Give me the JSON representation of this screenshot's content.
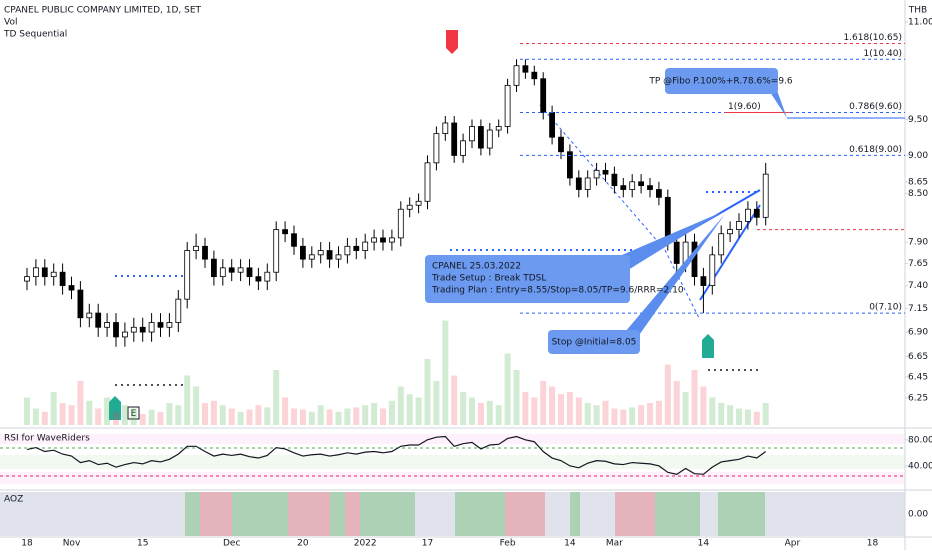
{
  "chart_data": [
    {
      "type": "candlestick",
      "title": "CPANEL PUBLIC COMPANY LIMITED, 1D, SET",
      "indicator": "TD Sequential",
      "currency": "THB",
      "log_scale": true,
      "up_color": "#ffffff",
      "down_color": "#000000",
      "categories": [
        "18",
        null,
        null,
        null,
        null,
        "Nov",
        null,
        null,
        null,
        null,
        null,
        null,
        null,
        "15",
        null,
        null,
        null,
        null,
        null,
        null,
        null,
        null,
        null,
        "Dec",
        null,
        null,
        null,
        null,
        null,
        null,
        null,
        "20",
        null,
        null,
        null,
        null,
        null,
        null,
        "2022",
        null,
        null,
        null,
        null,
        null,
        null,
        "17",
        null,
        null,
        null,
        null,
        null,
        null,
        null,
        null,
        "Feb",
        null,
        null,
        null,
        null,
        null,
        null,
        "14",
        null,
        null,
        null,
        null,
        "Mar",
        null,
        null,
        null,
        null,
        null,
        null,
        null,
        null,
        null,
        "14",
        null,
        null,
        null,
        null,
        null,
        null,
        null,
        null,
        null,
        "Apr",
        null,
        null,
        null,
        null,
        null,
        null,
        null,
        null,
        "18"
      ],
      "open": [
        7.45,
        7.5,
        7.6,
        7.5,
        7.55,
        7.4,
        7.35,
        7.05,
        7.1,
        6.95,
        7.0,
        6.85,
        6.9,
        6.95,
        6.9,
        7.0,
        6.95,
        7.0,
        7.25,
        7.8,
        7.85,
        7.7,
        7.5,
        7.6,
        7.55,
        7.6,
        7.5,
        7.45,
        7.55,
        8.05,
        8.0,
        7.85,
        7.7,
        7.75,
        7.8,
        7.7,
        7.75,
        7.85,
        7.8,
        7.9,
        7.95,
        7.9,
        7.95,
        8.3,
        8.35,
        8.4,
        8.9,
        9.3,
        9.45,
        9.0,
        9.2,
        9.4,
        9.1,
        9.35,
        9.4,
        10.0,
        10.3,
        10.2,
        10.1,
        9.6,
        9.25,
        9.05,
        8.7,
        8.55,
        8.7,
        8.8,
        8.75,
        8.6,
        8.55,
        8.65,
        8.6,
        8.55,
        8.45,
        7.9,
        7.65,
        7.9,
        7.5,
        7.4,
        7.75,
        8.0,
        8.05,
        8.15,
        8.3,
        8.2,
        null,
        null,
        null,
        null,
        null,
        null,
        null,
        null,
        null,
        null,
        null,
        null
      ],
      "high": [
        7.6,
        7.7,
        7.7,
        7.65,
        7.65,
        7.5,
        7.45,
        7.2,
        7.2,
        7.1,
        7.1,
        7.0,
        7.05,
        7.05,
        7.1,
        7.1,
        7.1,
        7.35,
        7.9,
        8.0,
        7.95,
        7.8,
        7.7,
        7.7,
        7.7,
        7.7,
        7.6,
        7.65,
        8.15,
        8.15,
        8.1,
        7.95,
        7.85,
        7.9,
        7.9,
        7.85,
        7.95,
        7.95,
        8.0,
        8.05,
        8.05,
        8.05,
        8.4,
        8.45,
        8.5,
        9.0,
        9.4,
        9.55,
        9.55,
        9.3,
        9.5,
        9.5,
        9.45,
        9.5,
        10.1,
        10.4,
        10.4,
        10.3,
        10.2,
        9.7,
        9.35,
        9.15,
        8.8,
        8.8,
        8.9,
        8.9,
        8.85,
        8.7,
        8.75,
        8.75,
        8.7,
        8.65,
        8.55,
        8.0,
        8.0,
        8.0,
        7.6,
        7.85,
        8.1,
        8.15,
        8.25,
        8.4,
        8.4,
        8.9,
        null,
        null,
        null,
        null,
        null,
        null,
        null,
        null,
        null,
        null,
        null,
        null
      ],
      "low": [
        7.35,
        7.4,
        7.4,
        7.4,
        7.3,
        7.25,
        6.95,
        6.95,
        6.85,
        6.85,
        6.75,
        6.75,
        6.8,
        6.8,
        6.8,
        6.85,
        6.85,
        6.9,
        7.15,
        7.7,
        7.6,
        7.4,
        7.4,
        7.45,
        7.45,
        7.4,
        7.35,
        7.35,
        7.45,
        7.9,
        7.75,
        7.6,
        7.6,
        7.65,
        7.6,
        7.6,
        7.65,
        7.7,
        7.7,
        7.8,
        7.8,
        7.8,
        7.85,
        8.2,
        8.25,
        8.3,
        8.8,
        9.2,
        8.9,
        8.9,
        9.1,
        9.0,
        9.0,
        9.25,
        9.3,
        9.9,
        10.1,
        10.0,
        9.5,
        9.15,
        8.95,
        8.6,
        8.45,
        8.45,
        8.6,
        8.65,
        8.5,
        8.45,
        8.45,
        8.5,
        8.45,
        8.35,
        7.8,
        7.55,
        7.55,
        7.4,
        7.1,
        7.3,
        7.65,
        7.9,
        7.95,
        8.05,
        8.1,
        8.1,
        null,
        null,
        null,
        null,
        null,
        null,
        null,
        null,
        null,
        null,
        null,
        null
      ],
      "close": [
        7.5,
        7.6,
        7.5,
        7.55,
        7.4,
        7.35,
        7.05,
        7.1,
        6.95,
        7.0,
        6.85,
        6.9,
        6.95,
        6.9,
        7.0,
        6.95,
        7.0,
        7.25,
        7.8,
        7.85,
        7.7,
        7.5,
        7.6,
        7.55,
        7.6,
        7.5,
        7.45,
        7.55,
        8.05,
        8.0,
        7.85,
        7.7,
        7.75,
        7.8,
        7.7,
        7.75,
        7.85,
        7.8,
        7.9,
        7.95,
        7.9,
        7.95,
        8.3,
        8.35,
        8.4,
        8.9,
        9.3,
        9.45,
        9.0,
        9.2,
        9.4,
        9.1,
        9.35,
        9.4,
        10.0,
        10.3,
        10.2,
        10.1,
        9.6,
        9.25,
        9.05,
        8.7,
        8.55,
        8.7,
        8.8,
        8.75,
        8.6,
        8.55,
        8.65,
        8.6,
        8.55,
        8.45,
        7.9,
        7.65,
        7.9,
        7.5,
        7.4,
        7.75,
        8.0,
        8.05,
        8.15,
        8.3,
        8.2,
        8.75,
        null,
        null,
        null,
        null,
        null,
        null,
        null,
        null,
        null,
        null,
        null,
        null
      ],
      "ylim": [
        6.0,
        11.37
      ],
      "yticks": [
        {
          "value": 11,
          "label": "11.00"
        },
        {
          "value": 9.5,
          "label": "9.50"
        },
        {
          "value": 9,
          "label": "9.00"
        },
        8.65,
        {
          "value": 8.5,
          "label": "8.50"
        },
        {
          "value": 7.9,
          "label": "7.90"
        },
        7.65,
        {
          "value": 7.4,
          "label": "7.40"
        },
        7.15,
        {
          "value": 6.9,
          "label": "6.90"
        },
        6.65,
        6.45,
        6.25
      ],
      "fib_levels": [
        {
          "label": "1.618(10.65)",
          "value": 10.65,
          "color": "#f23645"
        },
        {
          "label": "1(10.40)",
          "value": 10.4,
          "color": "#2962ff"
        },
        {
          "label": "0.786(9.60)",
          "value": 9.6,
          "color": "#2962ff"
        },
        {
          "label": "0.618(9.00)",
          "value": 9.0,
          "color": "#2962ff"
        },
        {
          "label": "0(7.10)",
          "value": 7.1,
          "color": "#2962ff"
        }
      ],
      "target_level": {
        "label": "1(9.60)",
        "value": 9.6,
        "color": "#f23645"
      },
      "stop_line": {
        "value": 8.05,
        "color": "#f23645"
      },
      "earnings_marker": "E",
      "callouts": [
        {
          "lines": [
            "TP @Fibo P.100%+R.78.6%=9.6"
          ]
        },
        {
          "lines": [
            "CPANEL 25.03.2022",
            "Trade Setup : Break TDSL",
            "Trading Plan : Entry=8.55/Stop=8.05/TP=9.6/RRR=2.10"
          ]
        },
        {
          "lines": [
            "Stop @Initial=8.05"
          ]
        }
      ]
    },
    {
      "type": "bar",
      "name": "Vol",
      "up_color": "rgba(76,175,80,0.25)",
      "down_color": "rgba(242,54,69,0.22)",
      "ylim": [
        0,
        100
      ],
      "values": [
        25,
        15,
        12,
        30,
        20,
        18,
        40,
        22,
        15,
        25,
        12,
        18,
        15,
        10,
        14,
        12,
        20,
        18,
        45,
        35,
        20,
        22,
        18,
        15,
        12,
        14,
        18,
        16,
        50,
        25,
        15,
        14,
        12,
        18,
        14,
        12,
        15,
        16,
        18,
        20,
        15,
        22,
        35,
        28,
        25,
        60,
        40,
        95,
        45,
        30,
        25,
        20,
        22,
        18,
        65,
        50,
        30,
        25,
        40,
        35,
        28,
        30,
        25,
        20,
        18,
        22,
        15,
        14,
        16,
        18,
        20,
        22,
        55,
        40,
        30,
        50,
        35,
        25,
        20,
        18,
        15,
        14,
        12,
        20,
        null,
        null,
        null,
        null,
        null,
        null,
        null,
        null,
        null,
        null,
        null,
        null
      ]
    },
    {
      "type": "line",
      "title": "RSI for WaveRiders",
      "color": "#131722",
      "ylim": [
        6,
        95
      ],
      "yticks": [
        {
          "value": 80,
          "label": "80.00"
        },
        {
          "value": 40,
          "label": "40.00"
        }
      ],
      "values": [
        65,
        68,
        62,
        64,
        58,
        55,
        45,
        48,
        42,
        44,
        38,
        42,
        45,
        43,
        48,
        46,
        50,
        58,
        70,
        70,
        62,
        55,
        58,
        56,
        58,
        54,
        52,
        56,
        68,
        66,
        60,
        55,
        57,
        58,
        55,
        57,
        60,
        58,
        61,
        62,
        60,
        62,
        70,
        72,
        72,
        80,
        84,
        85,
        70,
        74,
        76,
        66,
        72,
        73,
        82,
        85,
        80,
        77,
        62,
        52,
        48,
        40,
        37,
        44,
        48,
        47,
        43,
        42,
        45,
        44,
        43,
        40,
        30,
        27,
        36,
        28,
        27,
        38,
        46,
        48,
        50,
        55,
        52,
        62,
        null,
        null,
        null,
        null,
        null,
        null,
        null,
        null,
        null,
        null,
        null,
        null
      ]
    }
  ],
  "aoz_panel": {
    "title": "AOZ",
    "tick": "0.00"
  }
}
